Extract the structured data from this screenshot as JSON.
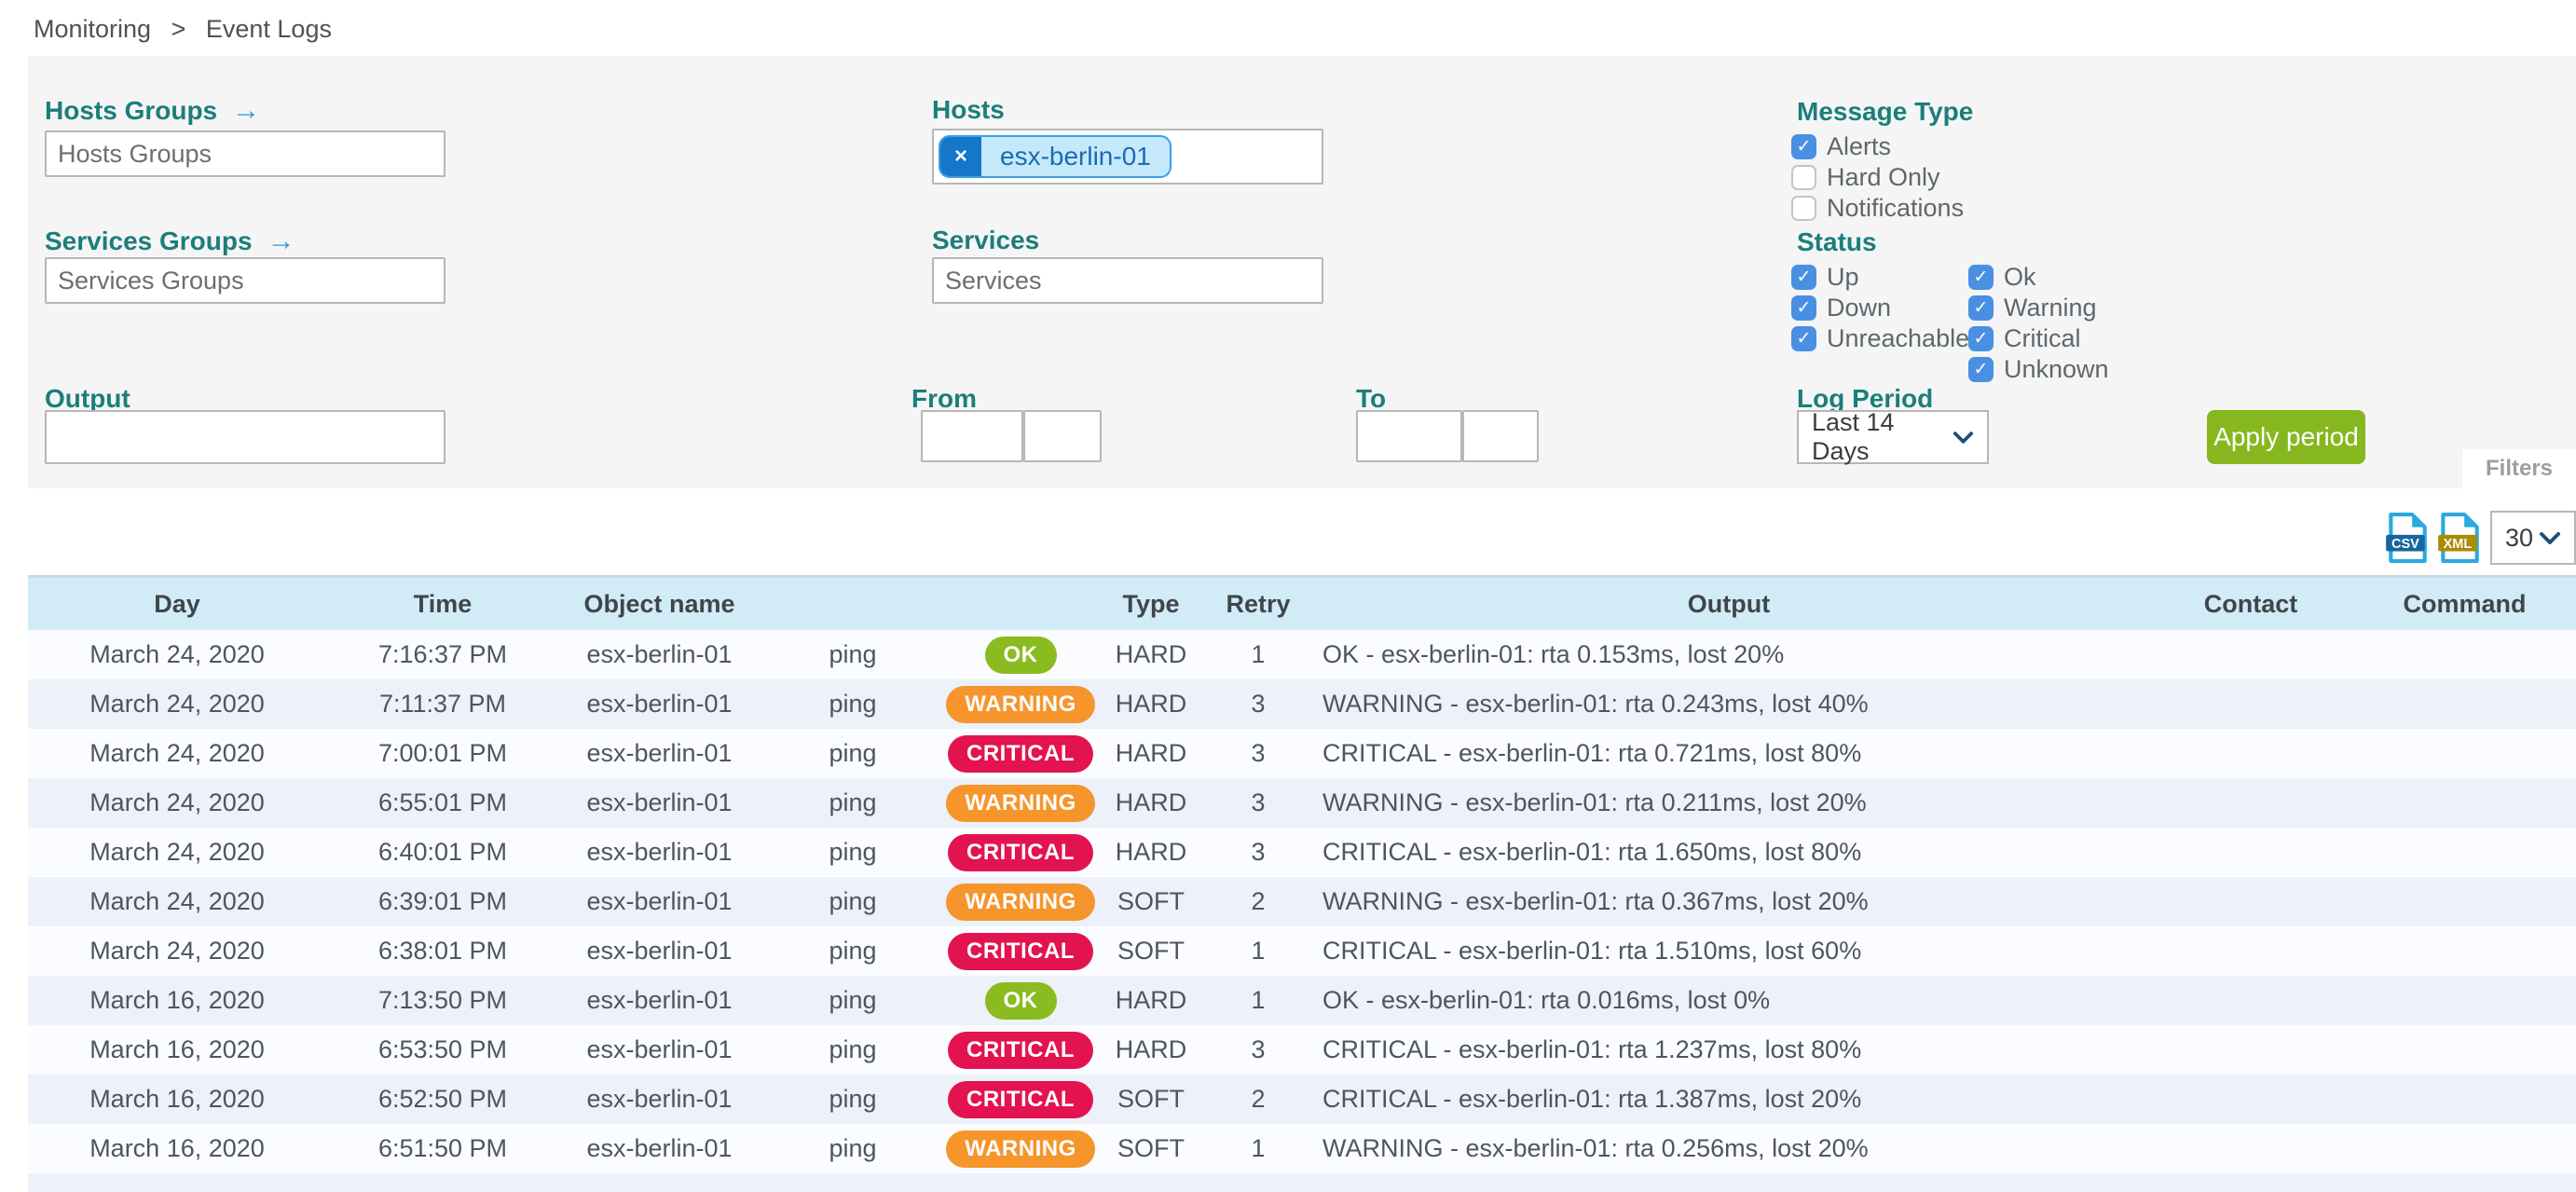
{
  "breadcrumb": {
    "items": [
      "Monitoring",
      "Event Logs"
    ],
    "separator": ">"
  },
  "filters": {
    "hosts_groups": {
      "label": "Hosts Groups",
      "placeholder": "Hosts Groups"
    },
    "services_groups": {
      "label": "Services Groups",
      "placeholder": "Services Groups"
    },
    "hosts": {
      "label": "Hosts",
      "chips": [
        {
          "text": "esx-berlin-01",
          "remove_glyph": "×"
        }
      ]
    },
    "services": {
      "label": "Services",
      "placeholder": "Services"
    },
    "output": {
      "label": "Output",
      "value": ""
    },
    "from": {
      "label": "From",
      "date_value": "",
      "time_value": ""
    },
    "to": {
      "label": "To",
      "date_value": "",
      "time_value": ""
    },
    "message_type": {
      "label": "Message Type",
      "options": [
        {
          "label": "Alerts",
          "checked": true
        },
        {
          "label": "Hard Only",
          "checked": false
        },
        {
          "label": "Notifications",
          "checked": false
        }
      ]
    },
    "status": {
      "label": "Status",
      "columns": [
        [
          {
            "label": "Up",
            "checked": true
          },
          {
            "label": "Down",
            "checked": true
          },
          {
            "label": "Unreachable",
            "checked": true
          }
        ],
        [
          {
            "label": "Ok",
            "checked": true
          },
          {
            "label": "Warning",
            "checked": true
          },
          {
            "label": "Critical",
            "checked": true
          },
          {
            "label": "Unknown",
            "checked": true
          }
        ]
      ]
    },
    "log_period": {
      "label": "Log Period",
      "selected": "Last 14 Days"
    },
    "apply_button_label": "Apply period",
    "filters_tab_label": "Filters"
  },
  "export": {
    "csv_label": "CSV",
    "xml_label": "XML",
    "page_size": "30"
  },
  "table": {
    "headers": [
      "Day",
      "Time",
      "Object name",
      "",
      "",
      "Type",
      "Retry",
      "Output",
      "Contact",
      "Command"
    ],
    "rows": [
      {
        "day": "March 24, 2020",
        "time": "7:16:37 PM",
        "object": "esx-berlin-01",
        "service": "ping",
        "status": "OK",
        "type": "HARD",
        "retry": "1",
        "output": "OK - esx-berlin-01: rta 0.153ms, lost 20%",
        "contact": "",
        "command": ""
      },
      {
        "day": "March 24, 2020",
        "time": "7:11:37 PM",
        "object": "esx-berlin-01",
        "service": "ping",
        "status": "WARNING",
        "type": "HARD",
        "retry": "3",
        "output": "WARNING - esx-berlin-01: rta 0.243ms, lost 40%",
        "contact": "",
        "command": ""
      },
      {
        "day": "March 24, 2020",
        "time": "7:00:01 PM",
        "object": "esx-berlin-01",
        "service": "ping",
        "status": "CRITICAL",
        "type": "HARD",
        "retry": "3",
        "output": "CRITICAL - esx-berlin-01: rta 0.721ms, lost 80%",
        "contact": "",
        "command": ""
      },
      {
        "day": "March 24, 2020",
        "time": "6:55:01 PM",
        "object": "esx-berlin-01",
        "service": "ping",
        "status": "WARNING",
        "type": "HARD",
        "retry": "3",
        "output": "WARNING - esx-berlin-01: rta 0.211ms, lost 20%",
        "contact": "",
        "command": ""
      },
      {
        "day": "March 24, 2020",
        "time": "6:40:01 PM",
        "object": "esx-berlin-01",
        "service": "ping",
        "status": "CRITICAL",
        "type": "HARD",
        "retry": "3",
        "output": "CRITICAL - esx-berlin-01: rta 1.650ms, lost 80%",
        "contact": "",
        "command": ""
      },
      {
        "day": "March 24, 2020",
        "time": "6:39:01 PM",
        "object": "esx-berlin-01",
        "service": "ping",
        "status": "WARNING",
        "type": "SOFT",
        "retry": "2",
        "output": "WARNING - esx-berlin-01: rta 0.367ms, lost 20%",
        "contact": "",
        "command": ""
      },
      {
        "day": "March 24, 2020",
        "time": "6:38:01 PM",
        "object": "esx-berlin-01",
        "service": "ping",
        "status": "CRITICAL",
        "type": "SOFT",
        "retry": "1",
        "output": "CRITICAL - esx-berlin-01: rta 1.510ms, lost 60%",
        "contact": "",
        "command": ""
      },
      {
        "day": "March 16, 2020",
        "time": "7:13:50 PM",
        "object": "esx-berlin-01",
        "service": "ping",
        "status": "OK",
        "type": "HARD",
        "retry": "1",
        "output": "OK - esx-berlin-01: rta 0.016ms, lost 0%",
        "contact": "",
        "command": ""
      },
      {
        "day": "March 16, 2020",
        "time": "6:53:50 PM",
        "object": "esx-berlin-01",
        "service": "ping",
        "status": "CRITICAL",
        "type": "HARD",
        "retry": "3",
        "output": "CRITICAL - esx-berlin-01: rta 1.237ms, lost 80%",
        "contact": "",
        "command": ""
      },
      {
        "day": "March 16, 2020",
        "time": "6:52:50 PM",
        "object": "esx-berlin-01",
        "service": "ping",
        "status": "CRITICAL",
        "type": "SOFT",
        "retry": "2",
        "output": "CRITICAL - esx-berlin-01: rta 1.387ms, lost 20%",
        "contact": "",
        "command": ""
      },
      {
        "day": "March 16, 2020",
        "time": "6:51:50 PM",
        "object": "esx-berlin-01",
        "service": "ping",
        "status": "WARNING",
        "type": "SOFT",
        "retry": "1",
        "output": "WARNING - esx-berlin-01: rta 0.256ms, lost 20%",
        "contact": "",
        "command": ""
      }
    ]
  },
  "colors": {
    "accent_teal": "#1b7e7a",
    "link_blue": "#2b9ad6",
    "checkbox_blue": "#4a90e2",
    "apply_green": "#87b71e",
    "status_ok": "#8abb1f",
    "status_warning": "#f6952c",
    "status_critical": "#e3134f",
    "table_header_bg": "#d2ecf7",
    "row_alt_bg": "#ecf1fa"
  },
  "icons": {
    "check_glyph": "✓",
    "arrow_glyph": "→"
  }
}
